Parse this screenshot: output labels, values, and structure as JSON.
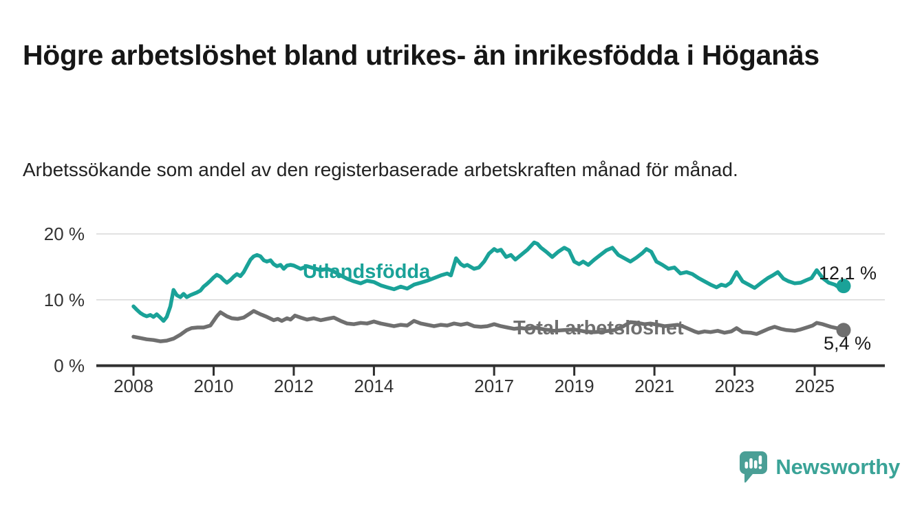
{
  "header": {
    "title": "Högre arbetslöshet bland utrikes- än inrikesfödda i Höganäs",
    "subtitle": "Arbetssökande som andel av den registerbaserade arbetskraften månad för månad."
  },
  "footer": {
    "brand": "Newsworthy"
  },
  "colors": {
    "background": "#ffffff",
    "title_text": "#161616",
    "subtitle_text": "#222222",
    "axis": "#2f2f2f",
    "grid": "#d8d8d8",
    "tick_text": "#333333",
    "value_label_text": "#1a1a1a",
    "series_teal": "#1aa298",
    "series_gray": "#6f6f6f",
    "logo_bubble": "#4a9f96",
    "logo_text": "#3aa397"
  },
  "chart_data": {
    "type": "line",
    "unit": "%",
    "ylim": [
      0,
      21
    ],
    "grid": "horizontal",
    "legend_position": "inline-labels",
    "y_ticks": [
      {
        "value": 0,
        "label": "0 %"
      },
      {
        "value": 10,
        "label": "10 %"
      },
      {
        "value": 20,
        "label": "20 %"
      }
    ],
    "x_ticks": [
      {
        "value": 2008,
        "label": "2008"
      },
      {
        "value": 2010,
        "label": "2010"
      },
      {
        "value": 2012,
        "label": "2012"
      },
      {
        "value": 2014,
        "label": "2014"
      },
      {
        "value": 2017,
        "label": "2017"
      },
      {
        "value": 2019,
        "label": "2019"
      },
      {
        "value": 2021,
        "label": "2021"
      },
      {
        "value": 2023,
        "label": "2023"
      },
      {
        "value": 2025,
        "label": "2025"
      }
    ],
    "series": [
      {
        "name": "Utlandsfödda",
        "color": "#1aa298",
        "end_label": "12,1 %",
        "end_value": 12.1,
        "points": [
          [
            2008.0,
            9.0
          ],
          [
            2008.08,
            8.5
          ],
          [
            2008.17,
            8.0
          ],
          [
            2008.25,
            7.7
          ],
          [
            2008.33,
            7.5
          ],
          [
            2008.42,
            7.7
          ],
          [
            2008.5,
            7.4
          ],
          [
            2008.58,
            7.8
          ],
          [
            2008.67,
            7.3
          ],
          [
            2008.75,
            6.8
          ],
          [
            2008.83,
            7.4
          ],
          [
            2008.92,
            9.0
          ],
          [
            2009.0,
            11.5
          ],
          [
            2009.08,
            10.7
          ],
          [
            2009.17,
            10.4
          ],
          [
            2009.25,
            10.9
          ],
          [
            2009.33,
            10.4
          ],
          [
            2009.42,
            10.7
          ],
          [
            2009.5,
            10.9
          ],
          [
            2009.58,
            11.1
          ],
          [
            2009.67,
            11.4
          ],
          [
            2009.75,
            12.0
          ],
          [
            2009.83,
            12.4
          ],
          [
            2009.92,
            12.9
          ],
          [
            2010.0,
            13.4
          ],
          [
            2010.08,
            13.8
          ],
          [
            2010.17,
            13.5
          ],
          [
            2010.25,
            13.0
          ],
          [
            2010.33,
            12.6
          ],
          [
            2010.42,
            13.0
          ],
          [
            2010.5,
            13.5
          ],
          [
            2010.58,
            13.9
          ],
          [
            2010.67,
            13.6
          ],
          [
            2010.75,
            14.2
          ],
          [
            2010.83,
            15.1
          ],
          [
            2010.92,
            16.1
          ],
          [
            2011.0,
            16.6
          ],
          [
            2011.08,
            16.8
          ],
          [
            2011.17,
            16.6
          ],
          [
            2011.25,
            16.0
          ],
          [
            2011.33,
            15.8
          ],
          [
            2011.42,
            16.0
          ],
          [
            2011.5,
            15.4
          ],
          [
            2011.58,
            15.1
          ],
          [
            2011.67,
            15.3
          ],
          [
            2011.75,
            14.7
          ],
          [
            2011.83,
            15.2
          ],
          [
            2011.92,
            15.3
          ],
          [
            2012.0,
            15.2
          ],
          [
            2012.17,
            14.7
          ],
          [
            2012.33,
            15.1
          ],
          [
            2012.5,
            14.8
          ],
          [
            2012.67,
            14.5
          ],
          [
            2012.83,
            14.7
          ],
          [
            2013.0,
            14.3
          ],
          [
            2013.17,
            13.7
          ],
          [
            2013.33,
            13.2
          ],
          [
            2013.5,
            12.8
          ],
          [
            2013.67,
            12.5
          ],
          [
            2013.83,
            12.9
          ],
          [
            2014.0,
            12.7
          ],
          [
            2014.17,
            12.2
          ],
          [
            2014.33,
            11.9
          ],
          [
            2014.5,
            11.6
          ],
          [
            2014.67,
            12.0
          ],
          [
            2014.83,
            11.7
          ],
          [
            2015.0,
            12.3
          ],
          [
            2015.17,
            12.6
          ],
          [
            2015.33,
            12.9
          ],
          [
            2015.5,
            13.3
          ],
          [
            2015.67,
            13.7
          ],
          [
            2015.83,
            14.0
          ],
          [
            2015.92,
            13.7
          ],
          [
            2016.05,
            16.3
          ],
          [
            2016.17,
            15.4
          ],
          [
            2016.25,
            15.1
          ],
          [
            2016.33,
            15.3
          ],
          [
            2016.5,
            14.7
          ],
          [
            2016.62,
            14.9
          ],
          [
            2016.75,
            15.8
          ],
          [
            2016.87,
            17.0
          ],
          [
            2017.0,
            17.7
          ],
          [
            2017.08,
            17.4
          ],
          [
            2017.17,
            17.6
          ],
          [
            2017.3,
            16.5
          ],
          [
            2017.42,
            16.8
          ],
          [
            2017.53,
            16.1
          ],
          [
            2017.67,
            16.8
          ],
          [
            2017.83,
            17.6
          ],
          [
            2018.0,
            18.7
          ],
          [
            2018.08,
            18.5
          ],
          [
            2018.17,
            17.9
          ],
          [
            2018.3,
            17.3
          ],
          [
            2018.45,
            16.5
          ],
          [
            2018.6,
            17.3
          ],
          [
            2018.75,
            17.9
          ],
          [
            2018.87,
            17.5
          ],
          [
            2019.0,
            15.8
          ],
          [
            2019.12,
            15.4
          ],
          [
            2019.22,
            15.8
          ],
          [
            2019.35,
            15.3
          ],
          [
            2019.5,
            16.1
          ],
          [
            2019.65,
            16.8
          ],
          [
            2019.8,
            17.5
          ],
          [
            2019.95,
            17.9
          ],
          [
            2020.1,
            16.8
          ],
          [
            2020.25,
            16.3
          ],
          [
            2020.4,
            15.8
          ],
          [
            2020.55,
            16.4
          ],
          [
            2020.7,
            17.1
          ],
          [
            2020.8,
            17.7
          ],
          [
            2020.92,
            17.3
          ],
          [
            2021.05,
            15.8
          ],
          [
            2021.2,
            15.3
          ],
          [
            2021.35,
            14.7
          ],
          [
            2021.5,
            14.9
          ],
          [
            2021.65,
            14.0
          ],
          [
            2021.8,
            14.2
          ],
          [
            2021.95,
            13.9
          ],
          [
            2022.1,
            13.3
          ],
          [
            2022.25,
            12.8
          ],
          [
            2022.4,
            12.3
          ],
          [
            2022.55,
            11.9
          ],
          [
            2022.67,
            12.3
          ],
          [
            2022.78,
            12.1
          ],
          [
            2022.9,
            12.6
          ],
          [
            2023.05,
            14.2
          ],
          [
            2023.2,
            12.8
          ],
          [
            2023.35,
            12.3
          ],
          [
            2023.5,
            11.8
          ],
          [
            2023.67,
            12.6
          ],
          [
            2023.83,
            13.3
          ],
          [
            2023.95,
            13.7
          ],
          [
            2024.08,
            14.2
          ],
          [
            2024.22,
            13.2
          ],
          [
            2024.35,
            12.8
          ],
          [
            2024.5,
            12.5
          ],
          [
            2024.65,
            12.6
          ],
          [
            2024.8,
            13.0
          ],
          [
            2024.92,
            13.3
          ],
          [
            2025.05,
            14.5
          ],
          [
            2025.2,
            13.3
          ],
          [
            2025.35,
            12.6
          ],
          [
            2025.5,
            12.3
          ],
          [
            2025.6,
            11.9
          ],
          [
            2025.72,
            12.1
          ]
        ]
      },
      {
        "name": "Total arbetslöshet",
        "color": "#6f6f6f",
        "end_label": "5,4 %",
        "end_value": 5.4,
        "points": [
          [
            2008.0,
            4.4
          ],
          [
            2008.17,
            4.2
          ],
          [
            2008.33,
            4.0
          ],
          [
            2008.5,
            3.9
          ],
          [
            2008.67,
            3.7
          ],
          [
            2008.83,
            3.8
          ],
          [
            2009.0,
            4.1
          ],
          [
            2009.17,
            4.7
          ],
          [
            2009.33,
            5.4
          ],
          [
            2009.45,
            5.7
          ],
          [
            2009.6,
            5.8
          ],
          [
            2009.75,
            5.8
          ],
          [
            2009.92,
            6.1
          ],
          [
            2010.08,
            7.5
          ],
          [
            2010.17,
            8.1
          ],
          [
            2010.33,
            7.5
          ],
          [
            2010.45,
            7.2
          ],
          [
            2010.6,
            7.1
          ],
          [
            2010.75,
            7.3
          ],
          [
            2010.9,
            7.9
          ],
          [
            2011.0,
            8.3
          ],
          [
            2011.17,
            7.8
          ],
          [
            2011.33,
            7.4
          ],
          [
            2011.5,
            6.9
          ],
          [
            2011.6,
            7.1
          ],
          [
            2011.7,
            6.8
          ],
          [
            2011.83,
            7.2
          ],
          [
            2011.92,
            7.0
          ],
          [
            2012.03,
            7.6
          ],
          [
            2012.17,
            7.3
          ],
          [
            2012.33,
            7.0
          ],
          [
            2012.5,
            7.2
          ],
          [
            2012.67,
            6.9
          ],
          [
            2012.83,
            7.1
          ],
          [
            2013.0,
            7.3
          ],
          [
            2013.17,
            6.8
          ],
          [
            2013.33,
            6.4
          ],
          [
            2013.5,
            6.3
          ],
          [
            2013.67,
            6.5
          ],
          [
            2013.83,
            6.4
          ],
          [
            2014.0,
            6.7
          ],
          [
            2014.17,
            6.4
          ],
          [
            2014.33,
            6.2
          ],
          [
            2014.5,
            6.0
          ],
          [
            2014.67,
            6.2
          ],
          [
            2014.83,
            6.1
          ],
          [
            2015.0,
            6.8
          ],
          [
            2015.17,
            6.4
          ],
          [
            2015.33,
            6.2
          ],
          [
            2015.5,
            6.0
          ],
          [
            2015.67,
            6.2
          ],
          [
            2015.83,
            6.1
          ],
          [
            2016.0,
            6.4
          ],
          [
            2016.17,
            6.2
          ],
          [
            2016.33,
            6.4
          ],
          [
            2016.5,
            6.0
          ],
          [
            2016.67,
            5.9
          ],
          [
            2016.83,
            6.0
          ],
          [
            2017.0,
            6.3
          ],
          [
            2017.17,
            6.0
          ],
          [
            2017.33,
            5.8
          ],
          [
            2017.5,
            5.6
          ],
          [
            2017.67,
            5.7
          ],
          [
            2017.83,
            5.6
          ],
          [
            2018.0,
            5.8
          ],
          [
            2018.25,
            5.5
          ],
          [
            2018.5,
            5.3
          ],
          [
            2018.75,
            5.4
          ],
          [
            2019.0,
            5.5
          ],
          [
            2019.25,
            5.2
          ],
          [
            2019.5,
            5.1
          ],
          [
            2019.75,
            5.2
          ],
          [
            2020.0,
            5.4
          ],
          [
            2020.2,
            5.9
          ],
          [
            2020.4,
            6.6
          ],
          [
            2020.58,
            6.5
          ],
          [
            2020.75,
            6.3
          ],
          [
            2020.9,
            6.4
          ],
          [
            2021.08,
            6.2
          ],
          [
            2021.25,
            6.0
          ],
          [
            2021.42,
            6.1
          ],
          [
            2021.58,
            6.2
          ],
          [
            2021.7,
            6.0
          ],
          [
            2021.85,
            5.6
          ],
          [
            2022.0,
            5.2
          ],
          [
            2022.1,
            5.0
          ],
          [
            2022.25,
            5.2
          ],
          [
            2022.4,
            5.1
          ],
          [
            2022.58,
            5.3
          ],
          [
            2022.75,
            5.0
          ],
          [
            2022.92,
            5.2
          ],
          [
            2023.05,
            5.7
          ],
          [
            2023.2,
            5.1
          ],
          [
            2023.4,
            5.0
          ],
          [
            2023.55,
            4.8
          ],
          [
            2023.7,
            5.2
          ],
          [
            2023.85,
            5.6
          ],
          [
            2024.0,
            5.9
          ],
          [
            2024.15,
            5.6
          ],
          [
            2024.3,
            5.4
          ],
          [
            2024.5,
            5.3
          ],
          [
            2024.65,
            5.5
          ],
          [
            2024.8,
            5.8
          ],
          [
            2024.95,
            6.1
          ],
          [
            2025.05,
            6.5
          ],
          [
            2025.2,
            6.3
          ],
          [
            2025.4,
            5.9
          ],
          [
            2025.55,
            5.7
          ],
          [
            2025.72,
            5.4
          ]
        ]
      }
    ]
  }
}
